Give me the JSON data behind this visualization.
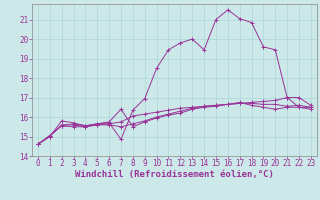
{
  "xlabel": "Windchill (Refroidissement éolien,°C)",
  "background_color": "#cce8e8",
  "line_color": "#993399",
  "xlim": [
    -0.5,
    23.5
  ],
  "ylim": [
    14,
    21.8
  ],
  "yticks": [
    14,
    15,
    16,
    17,
    18,
    19,
    20,
    21
  ],
  "xticks": [
    0,
    1,
    2,
    3,
    4,
    5,
    6,
    7,
    8,
    9,
    10,
    11,
    12,
    13,
    14,
    15,
    16,
    17,
    18,
    19,
    20,
    21,
    22,
    23
  ],
  "curve1_x": [
    0,
    1,
    2,
    3,
    4,
    5,
    6,
    7,
    8,
    9,
    10,
    11,
    12,
    13,
    14,
    15,
    16,
    17,
    18,
    19,
    20,
    21,
    22,
    23
  ],
  "curve1_y": [
    14.6,
    15.0,
    15.8,
    15.7,
    15.55,
    15.65,
    15.7,
    14.85,
    16.35,
    16.95,
    18.5,
    19.45,
    19.8,
    20.0,
    19.45,
    21.0,
    21.5,
    21.05,
    20.85,
    19.6,
    19.45,
    17.0,
    16.5,
    16.5
  ],
  "curve2_x": [
    0,
    1,
    2,
    3,
    4,
    5,
    6,
    7,
    8,
    9,
    10,
    11,
    12,
    13,
    14,
    15,
    16,
    17,
    18,
    19,
    20,
    21,
    22,
    23
  ],
  "curve2_y": [
    14.6,
    15.05,
    15.55,
    15.5,
    15.5,
    15.6,
    15.6,
    15.5,
    15.65,
    15.8,
    16.0,
    16.15,
    16.3,
    16.45,
    16.55,
    16.6,
    16.65,
    16.7,
    16.75,
    16.8,
    16.85,
    17.0,
    17.0,
    16.6
  ],
  "curve3_x": [
    0,
    1,
    2,
    3,
    4,
    5,
    6,
    7,
    8,
    9,
    10,
    11,
    12,
    13,
    14,
    15,
    16,
    17,
    18,
    19,
    20,
    21,
    22,
    23
  ],
  "curve3_y": [
    14.6,
    15.0,
    15.6,
    15.6,
    15.5,
    15.6,
    15.65,
    15.75,
    16.05,
    16.15,
    16.25,
    16.35,
    16.45,
    16.5,
    16.55,
    16.6,
    16.65,
    16.7,
    16.7,
    16.65,
    16.65,
    16.55,
    16.6,
    16.5
  ],
  "curve4_x": [
    0,
    1,
    2,
    3,
    4,
    5,
    6,
    7,
    8,
    9,
    10,
    11,
    12,
    13,
    14,
    15,
    16,
    17,
    18,
    19,
    20,
    21,
    22,
    23
  ],
  "curve4_y": [
    14.6,
    15.05,
    15.55,
    15.65,
    15.55,
    15.65,
    15.75,
    16.4,
    15.5,
    15.75,
    15.95,
    16.1,
    16.2,
    16.4,
    16.5,
    16.55,
    16.65,
    16.75,
    16.6,
    16.5,
    16.4,
    16.5,
    16.5,
    16.4
  ],
  "grid_color": "#aad8d8",
  "tick_fontsize": 5.5,
  "xlabel_fontsize": 6.5
}
